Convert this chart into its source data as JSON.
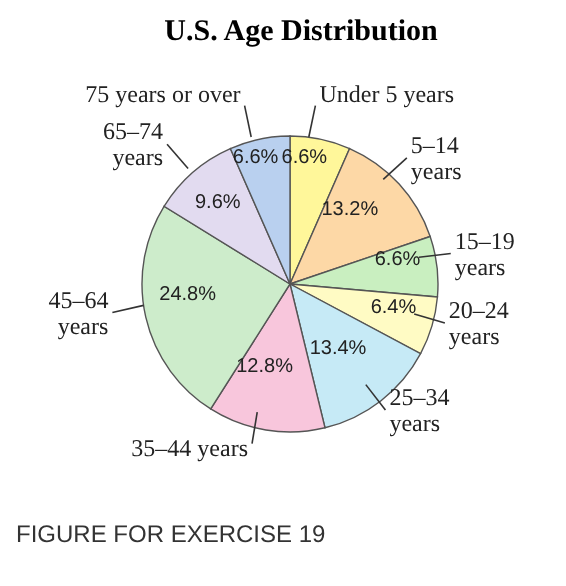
{
  "chart_data": {
    "type": "pie",
    "title": "U.S. Age Distribution",
    "categories": [
      "Under 5 years",
      "5–14 years",
      "15–19 years",
      "20–24 years",
      "25–34 years",
      "35–44 years",
      "45–64 years",
      "65–74 years",
      "75 years or over"
    ],
    "values": [
      6.6,
      13.2,
      6.6,
      6.4,
      13.4,
      12.8,
      24.8,
      9.6,
      6.6
    ],
    "value_labels": [
      "6.6%",
      "13.2%",
      "6.6%",
      "6.4%",
      "13.4%",
      "12.8%",
      "24.8%",
      "9.6%",
      "6.6%"
    ],
    "colors": [
      "#fff79a",
      "#fdd8a6",
      "#c9efc0",
      "#fffbc4",
      "#c6eaf6",
      "#f8c6dc",
      "#cdeccb",
      "#e2dbf0",
      "#b9d0ef"
    ],
    "annotations": [
      "FIGURE FOR EXERCISE 19"
    ]
  }
}
